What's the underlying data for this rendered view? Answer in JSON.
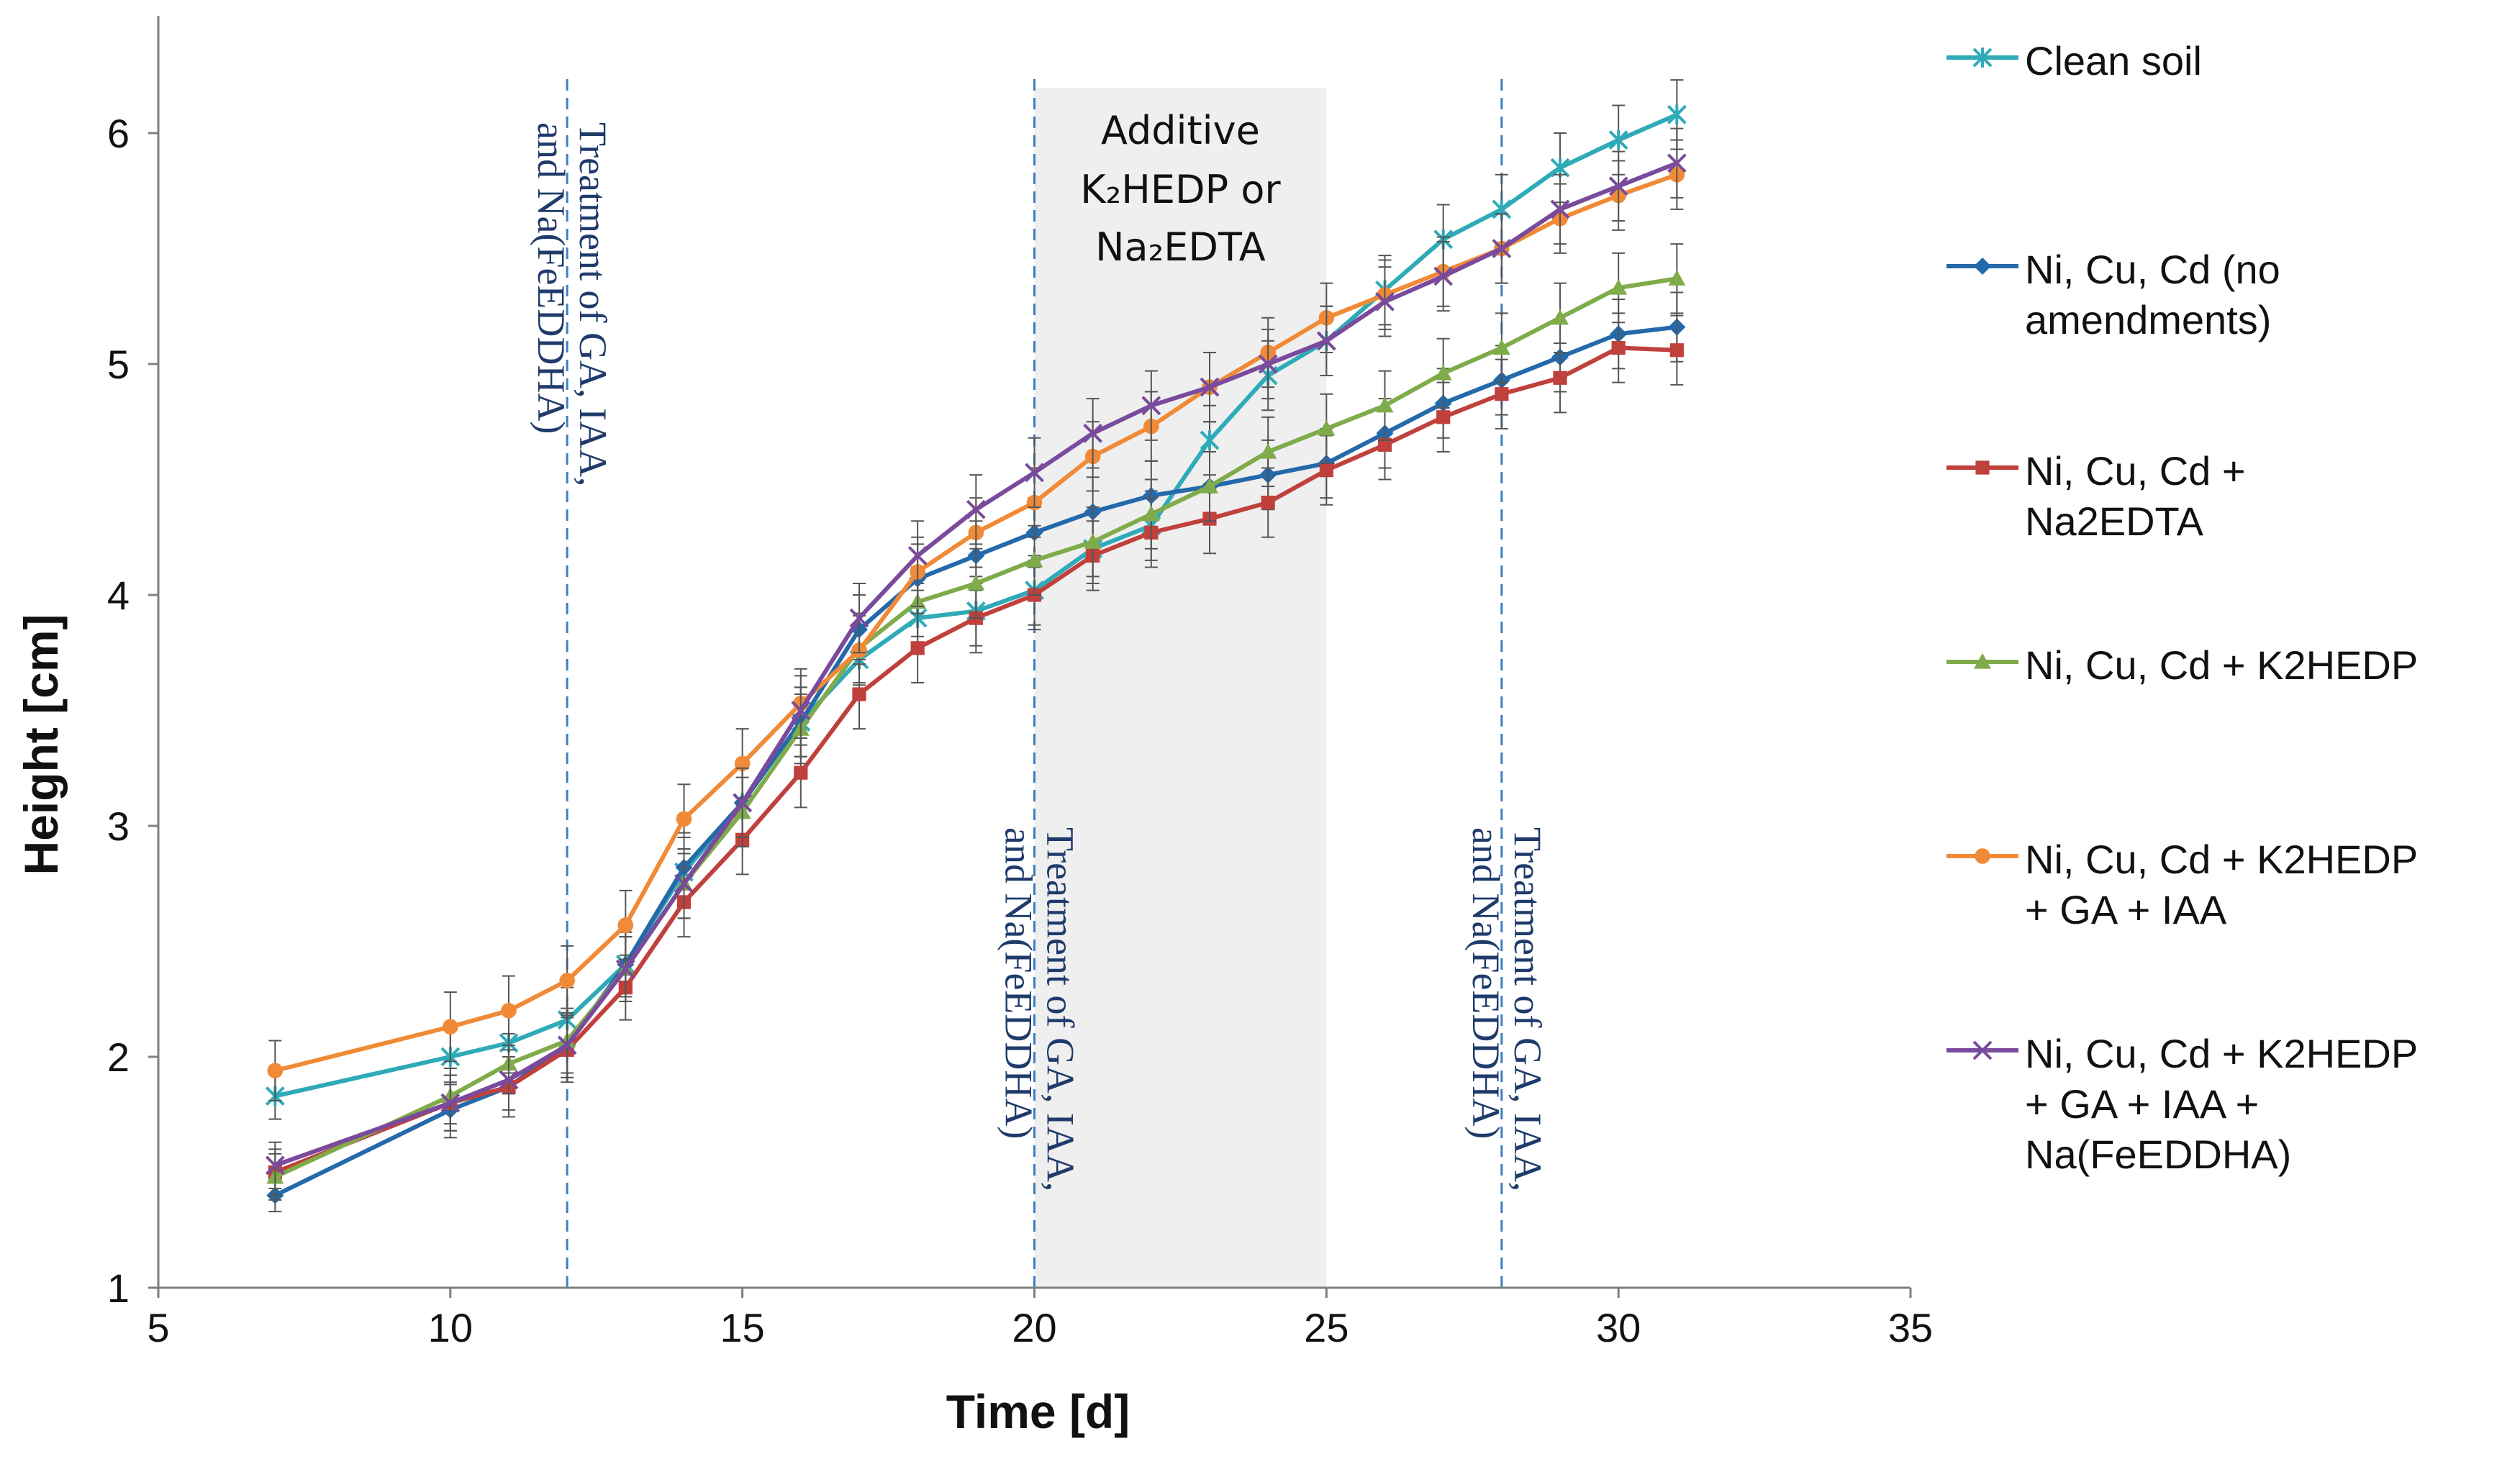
{
  "chart_data": {
    "type": "line",
    "xlabel": "Time [d]",
    "ylabel": "Height [cm]",
    "xlim": [
      5,
      35
    ],
    "ylim": [
      1,
      6.5
    ],
    "xticks": [
      5,
      10,
      15,
      20,
      25,
      30,
      35
    ],
    "yticks": [
      1,
      2,
      3,
      4,
      5,
      6
    ],
    "x": [
      7,
      10,
      11,
      12,
      13,
      14,
      15,
      16,
      17,
      18,
      19,
      20,
      21,
      22,
      23,
      24,
      25,
      26,
      27,
      28,
      29,
      30,
      31
    ],
    "series": [
      {
        "name": "Clean soil",
        "color": "#2eaab8",
        "marker": "star",
        "values": [
          1.83,
          2.0,
          2.06,
          2.16,
          2.4,
          2.8,
          3.1,
          3.45,
          3.72,
          3.9,
          3.93,
          4.02,
          4.2,
          4.3,
          4.67,
          4.95,
          5.1,
          5.32,
          5.54,
          5.67,
          5.85,
          5.97,
          6.08
        ],
        "errors": [
          0.1,
          0.12,
          0.13,
          0.14,
          0.14,
          0.15,
          0.15,
          0.15,
          0.15,
          0.15,
          0.15,
          0.15,
          0.15,
          0.15,
          0.15,
          0.15,
          0.15,
          0.15,
          0.15,
          0.15,
          0.15,
          0.15,
          0.15
        ]
      },
      {
        "name": "Ni, Cu, Cd (no amendments)",
        "color": "#2469aa",
        "marker": "diamond",
        "values": [
          1.4,
          1.77,
          1.87,
          2.05,
          2.4,
          2.82,
          3.1,
          3.45,
          3.85,
          4.07,
          4.17,
          4.27,
          4.36,
          4.43,
          4.47,
          4.52,
          4.57,
          4.7,
          4.83,
          4.93,
          5.03,
          5.13,
          5.16
        ],
        "errors": [
          0.07,
          0.12,
          0.13,
          0.14,
          0.14,
          0.15,
          0.15,
          0.15,
          0.15,
          0.15,
          0.15,
          0.15,
          0.15,
          0.15,
          0.15,
          0.15,
          0.15,
          0.15,
          0.15,
          0.15,
          0.15,
          0.15,
          0.15
        ]
      },
      {
        "name": "Ni, Cu, Cd + Na2EDTA",
        "color": "#c0403c",
        "marker": "square",
        "values": [
          1.5,
          1.8,
          1.87,
          2.03,
          2.3,
          2.67,
          2.94,
          3.23,
          3.57,
          3.77,
          3.9,
          4.0,
          4.17,
          4.27,
          4.33,
          4.4,
          4.54,
          4.65,
          4.77,
          4.87,
          4.94,
          5.07,
          5.06
        ],
        "errors": [
          0.1,
          0.12,
          0.13,
          0.14,
          0.14,
          0.15,
          0.15,
          0.15,
          0.15,
          0.15,
          0.15,
          0.15,
          0.15,
          0.15,
          0.15,
          0.15,
          0.15,
          0.15,
          0.15,
          0.15,
          0.15,
          0.15,
          0.15
        ]
      },
      {
        "name": "Ni, Cu, Cd + K2HEDP",
        "color": "#7fab4a",
        "marker": "triangle",
        "values": [
          1.48,
          1.83,
          1.97,
          2.07,
          2.38,
          2.75,
          3.06,
          3.42,
          3.77,
          3.97,
          4.05,
          4.15,
          4.23,
          4.35,
          4.47,
          4.62,
          4.72,
          4.82,
          4.96,
          5.07,
          5.2,
          5.33,
          5.37
        ],
        "errors": [
          0.1,
          0.12,
          0.13,
          0.14,
          0.14,
          0.15,
          0.15,
          0.15,
          0.15,
          0.15,
          0.15,
          0.15,
          0.15,
          0.15,
          0.15,
          0.15,
          0.15,
          0.15,
          0.15,
          0.15,
          0.15,
          0.15,
          0.15
        ]
      },
      {
        "name": "Ni, Cu, Cd + K2HEDP + GA + IAA",
        "color": "#f08a36",
        "marker": "circle",
        "values": [
          1.94,
          2.13,
          2.2,
          2.33,
          2.57,
          3.03,
          3.27,
          3.53,
          3.76,
          4.1,
          4.27,
          4.4,
          4.6,
          4.73,
          4.9,
          5.05,
          5.2,
          5.3,
          5.4,
          5.5,
          5.63,
          5.73,
          5.82
        ],
        "errors": [
          0.13,
          0.15,
          0.15,
          0.15,
          0.15,
          0.15,
          0.15,
          0.15,
          0.15,
          0.15,
          0.15,
          0.15,
          0.15,
          0.15,
          0.15,
          0.15,
          0.15,
          0.15,
          0.15,
          0.15,
          0.15,
          0.15,
          0.15
        ]
      },
      {
        "name": "Ni, Cu, Cd + K2HEDP + GA + IAA + Na(FeEDDHA)",
        "color": "#7a4a9c",
        "marker": "x",
        "values": [
          1.53,
          1.8,
          1.9,
          2.05,
          2.38,
          2.75,
          3.1,
          3.5,
          3.9,
          4.17,
          4.37,
          4.53,
          4.7,
          4.82,
          4.9,
          5.0,
          5.1,
          5.27,
          5.38,
          5.5,
          5.67,
          5.77,
          5.87
        ],
        "errors": [
          0.1,
          0.12,
          0.13,
          0.14,
          0.14,
          0.15,
          0.15,
          0.15,
          0.15,
          0.15,
          0.15,
          0.15,
          0.15,
          0.15,
          0.15,
          0.15,
          0.15,
          0.15,
          0.15,
          0.15,
          0.15,
          0.15,
          0.15
        ]
      }
    ],
    "treatment_lines": [
      {
        "x": 12,
        "label_line1": "Treatment of GA, IAA,",
        "label_line2": "and Na(FeEDDHA)"
      },
      {
        "x": 20,
        "label_line1": "Treatment of GA, IAA,",
        "label_line2": "and Na(FeEDDHA)"
      },
      {
        "x": 28,
        "label_line1": "Treatment of GA, IAA,",
        "label_line2": "and Na(FeEDDHA)"
      }
    ],
    "shaded_region": {
      "x_range": [
        20,
        25
      ],
      "color": "#efefef",
      "label_line1": "Additive",
      "label_line2": "K₂HEDP or",
      "label_line3": "Na₂EDTA"
    },
    "legend_position": "right",
    "grid": false
  },
  "legend": {
    "items": [
      {
        "label": "Clean soil"
      },
      {
        "label": "Ni, Cu, Cd (no\namendments)"
      },
      {
        "label": "Ni, Cu, Cd +\nNa2EDTA"
      },
      {
        "label": "Ni, Cu, Cd + K2HEDP"
      },
      {
        "label": "Ni, Cu, Cd + K2HEDP\n+ GA + IAA"
      },
      {
        "label": "Ni, Cu, Cd + K2HEDP\n+ GA + IAA +\nNa(FeEDDHA)"
      }
    ]
  },
  "colors": {
    "axis": "#7f7f7f",
    "treatment_line": "#3b7fc4",
    "treatment_text": "#1f3b6b",
    "error_bar": "#555555"
  }
}
